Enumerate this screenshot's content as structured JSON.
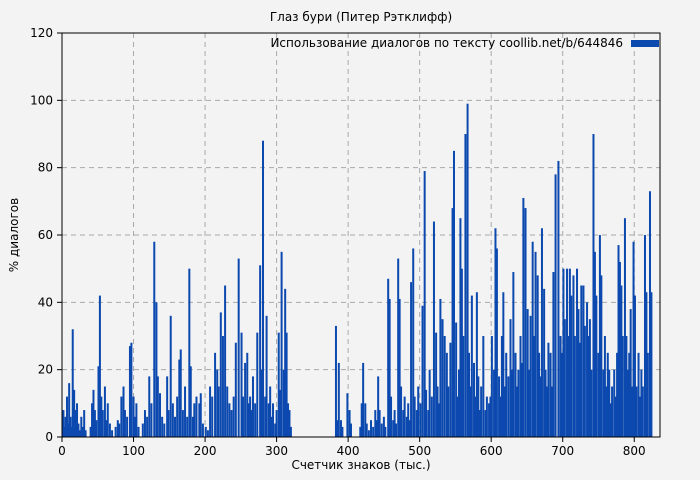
{
  "page": {
    "background": "#f3f3f3"
  },
  "chart_data": {
    "type": "bar",
    "title": "Глаз бури (Питер Рэтклифф)",
    "xlabel": "Счетчик знаков (тыс.)",
    "ylabel": "% диалогов",
    "legend": {
      "label": "Использование диалогов по тексту coollib.net/b/644846",
      "position": "top-right-inside"
    },
    "xlim": [
      0,
      836
    ],
    "ylim": [
      0,
      120
    ],
    "x_ticks": [
      0,
      100,
      200,
      300,
      400,
      500,
      600,
      700,
      800
    ],
    "y_ticks": [
      0,
      20,
      40,
      60,
      80,
      100,
      120
    ],
    "grid": true,
    "colors": {
      "bar": "#0c49af",
      "grid": "#a9a9a9",
      "frame": "#000000",
      "text": "#000000",
      "background": "#f3f3f3"
    },
    "bars": [
      [
        1,
        5
      ],
      [
        2,
        8
      ],
      [
        3,
        3
      ],
      [
        5,
        6
      ],
      [
        6,
        2
      ],
      [
        7,
        12
      ],
      [
        9,
        4
      ],
      [
        10,
        16
      ],
      [
        12,
        6
      ],
      [
        13,
        3
      ],
      [
        15,
        32
      ],
      [
        17,
        14
      ],
      [
        19,
        8
      ],
      [
        21,
        10
      ],
      [
        23,
        4
      ],
      [
        25,
        2
      ],
      [
        27,
        6
      ],
      [
        29,
        3
      ],
      [
        31,
        8
      ],
      [
        33,
        2
      ],
      [
        40,
        3
      ],
      [
        42,
        10
      ],
      [
        44,
        14
      ],
      [
        46,
        8
      ],
      [
        48,
        5
      ],
      [
        51,
        21
      ],
      [
        53,
        42
      ],
      [
        55,
        12
      ],
      [
        57,
        8
      ],
      [
        60,
        15
      ],
      [
        62,
        5
      ],
      [
        64,
        10
      ],
      [
        67,
        4
      ],
      [
        70,
        2
      ],
      [
        75,
        3
      ],
      [
        78,
        5
      ],
      [
        80,
        4
      ],
      [
        83,
        12
      ],
      [
        86,
        15
      ],
      [
        88,
        8
      ],
      [
        91,
        6
      ],
      [
        95,
        27
      ],
      [
        97,
        28
      ],
      [
        100,
        12
      ],
      [
        102,
        6
      ],
      [
        104,
        10
      ],
      [
        107,
        3
      ],
      [
        113,
        4
      ],
      [
        116,
        8
      ],
      [
        119,
        6
      ],
      [
        122,
        18
      ],
      [
        125,
        10
      ],
      [
        129,
        58
      ],
      [
        132,
        40
      ],
      [
        134,
        18
      ],
      [
        137,
        13
      ],
      [
        140,
        6
      ],
      [
        143,
        4
      ],
      [
        147,
        18
      ],
      [
        149,
        8
      ],
      [
        152,
        36
      ],
      [
        155,
        10
      ],
      [
        158,
        6
      ],
      [
        161,
        12
      ],
      [
        164,
        23
      ],
      [
        166,
        26
      ],
      [
        169,
        8
      ],
      [
        172,
        15
      ],
      [
        175,
        6
      ],
      [
        178,
        50
      ],
      [
        180,
        21
      ],
      [
        183,
        6
      ],
      [
        185,
        10
      ],
      [
        188,
        12
      ],
      [
        192,
        10
      ],
      [
        194,
        13
      ],
      [
        197,
        4
      ],
      [
        201,
        3
      ],
      [
        204,
        2
      ],
      [
        207,
        15
      ],
      [
        210,
        12
      ],
      [
        214,
        25
      ],
      [
        217,
        20
      ],
      [
        219,
        15
      ],
      [
        222,
        37
      ],
      [
        225,
        30
      ],
      [
        228,
        45
      ],
      [
        231,
        15
      ],
      [
        234,
        10
      ],
      [
        237,
        8
      ],
      [
        240,
        12
      ],
      [
        243,
        28
      ],
      [
        247,
        53
      ],
      [
        251,
        31
      ],
      [
        253,
        12
      ],
      [
        256,
        22
      ],
      [
        259,
        25
      ],
      [
        261,
        10
      ],
      [
        263,
        12
      ],
      [
        265,
        8
      ],
      [
        267,
        18
      ],
      [
        270,
        10
      ],
      [
        273,
        31
      ],
      [
        277,
        51
      ],
      [
        279,
        20
      ],
      [
        281,
        88
      ],
      [
        284,
        12
      ],
      [
        286,
        36
      ],
      [
        289,
        10
      ],
      [
        291,
        15
      ],
      [
        293,
        6
      ],
      [
        295,
        10
      ],
      [
        298,
        4
      ],
      [
        300,
        8
      ],
      [
        303,
        31
      ],
      [
        305,
        14
      ],
      [
        307,
        55
      ],
      [
        310,
        20
      ],
      [
        312,
        44
      ],
      [
        314,
        31
      ],
      [
        316,
        10
      ],
      [
        318,
        8
      ],
      [
        320,
        3
      ],
      [
        383,
        33
      ],
      [
        385,
        5
      ],
      [
        387,
        22
      ],
      [
        390,
        5
      ],
      [
        392,
        3
      ],
      [
        399,
        13
      ],
      [
        402,
        8
      ],
      [
        404,
        4
      ],
      [
        417,
        3
      ],
      [
        419,
        10
      ],
      [
        421,
        22
      ],
      [
        424,
        10
      ],
      [
        426,
        4
      ],
      [
        429,
        2
      ],
      [
        432,
        5
      ],
      [
        435,
        3
      ],
      [
        438,
        8
      ],
      [
        440,
        5
      ],
      [
        442,
        18
      ],
      [
        444,
        8
      ],
      [
        447,
        4
      ],
      [
        450,
        6
      ],
      [
        452,
        3
      ],
      [
        456,
        47
      ],
      [
        458,
        41
      ],
      [
        460,
        12
      ],
      [
        463,
        5
      ],
      [
        465,
        8
      ],
      [
        467,
        4
      ],
      [
        470,
        53
      ],
      [
        472,
        41
      ],
      [
        474,
        15
      ],
      [
        477,
        8
      ],
      [
        479,
        12
      ],
      [
        482,
        6
      ],
      [
        484,
        10
      ],
      [
        486,
        5
      ],
      [
        488,
        46
      ],
      [
        491,
        56
      ],
      [
        493,
        12
      ],
      [
        496,
        8
      ],
      [
        498,
        15
      ],
      [
        501,
        10
      ],
      [
        504,
        39
      ],
      [
        507,
        79
      ],
      [
        509,
        14
      ],
      [
        512,
        8
      ],
      [
        514,
        20
      ],
      [
        517,
        12
      ],
      [
        520,
        64
      ],
      [
        523,
        31
      ],
      [
        525,
        15
      ],
      [
        527,
        10
      ],
      [
        529,
        41
      ],
      [
        532,
        35
      ],
      [
        535,
        30
      ],
      [
        538,
        25
      ],
      [
        540,
        15
      ],
      [
        543,
        28
      ],
      [
        546,
        68
      ],
      [
        548,
        85
      ],
      [
        551,
        34
      ],
      [
        553,
        12
      ],
      [
        555,
        20
      ],
      [
        557,
        65
      ],
      [
        559,
        50
      ],
      [
        561,
        30
      ],
      [
        564,
        90
      ],
      [
        567,
        99
      ],
      [
        569,
        25
      ],
      [
        571,
        15
      ],
      [
        573,
        42
      ],
      [
        576,
        22
      ],
      [
        578,
        12
      ],
      [
        580,
        43
      ],
      [
        582,
        18
      ],
      [
        584,
        8
      ],
      [
        586,
        15
      ],
      [
        589,
        30
      ],
      [
        592,
        8
      ],
      [
        594,
        12
      ],
      [
        597,
        10
      ],
      [
        599,
        12
      ],
      [
        601,
        30
      ],
      [
        604,
        20
      ],
      [
        606,
        62
      ],
      [
        608,
        56
      ],
      [
        611,
        18
      ],
      [
        613,
        12
      ],
      [
        615,
        30
      ],
      [
        617,
        43
      ],
      [
        619,
        15
      ],
      [
        621,
        25
      ],
      [
        624,
        18
      ],
      [
        627,
        35
      ],
      [
        629,
        20
      ],
      [
        631,
        49
      ],
      [
        634,
        25
      ],
      [
        636,
        15
      ],
      [
        638,
        20
      ],
      [
        641,
        30
      ],
      [
        643,
        22
      ],
      [
        645,
        71
      ],
      [
        648,
        68
      ],
      [
        651,
        38
      ],
      [
        653,
        20
      ],
      [
        655,
        36
      ],
      [
        658,
        58
      ],
      [
        660,
        30
      ],
      [
        662,
        55
      ],
      [
        665,
        48
      ],
      [
        667,
        25
      ],
      [
        669,
        18
      ],
      [
        671,
        62
      ],
      [
        674,
        44
      ],
      [
        676,
        20
      ],
      [
        678,
        15
      ],
      [
        680,
        28
      ],
      [
        683,
        25
      ],
      [
        685,
        15
      ],
      [
        687,
        49
      ],
      [
        690,
        78
      ],
      [
        694,
        82
      ],
      [
        697,
        30
      ],
      [
        699,
        25
      ],
      [
        701,
        50
      ],
      [
        703,
        35
      ],
      [
        706,
        50
      ],
      [
        708,
        30
      ],
      [
        710,
        50
      ],
      [
        712,
        42
      ],
      [
        715,
        48
      ],
      [
        717,
        30
      ],
      [
        720,
        50
      ],
      [
        722,
        38
      ],
      [
        724,
        28
      ],
      [
        726,
        45
      ],
      [
        729,
        45
      ],
      [
        731,
        33
      ],
      [
        734,
        40
      ],
      [
        736,
        30
      ],
      [
        738,
        35
      ],
      [
        740,
        20
      ],
      [
        743,
        90
      ],
      [
        745,
        55
      ],
      [
        747,
        42
      ],
      [
        750,
        25
      ],
      [
        752,
        60
      ],
      [
        754,
        48
      ],
      [
        757,
        20
      ],
      [
        759,
        30
      ],
      [
        761,
        15
      ],
      [
        763,
        25
      ],
      [
        765,
        20
      ],
      [
        767,
        10
      ],
      [
        769,
        15
      ],
      [
        772,
        20
      ],
      [
        774,
        12
      ],
      [
        776,
        25
      ],
      [
        778,
        57
      ],
      [
        780,
        52
      ],
      [
        782,
        45
      ],
      [
        784,
        30
      ],
      [
        787,
        65
      ],
      [
        789,
        30
      ],
      [
        791,
        20
      ],
      [
        793,
        25
      ],
      [
        795,
        38
      ],
      [
        797,
        15
      ],
      [
        799,
        58
      ],
      [
        801,
        42
      ],
      [
        803,
        15
      ],
      [
        806,
        25
      ],
      [
        808,
        12
      ],
      [
        810,
        20
      ],
      [
        812,
        15
      ],
      [
        815,
        60
      ],
      [
        817,
        43
      ],
      [
        819,
        25
      ],
      [
        822,
        73
      ],
      [
        824,
        43
      ]
    ]
  }
}
